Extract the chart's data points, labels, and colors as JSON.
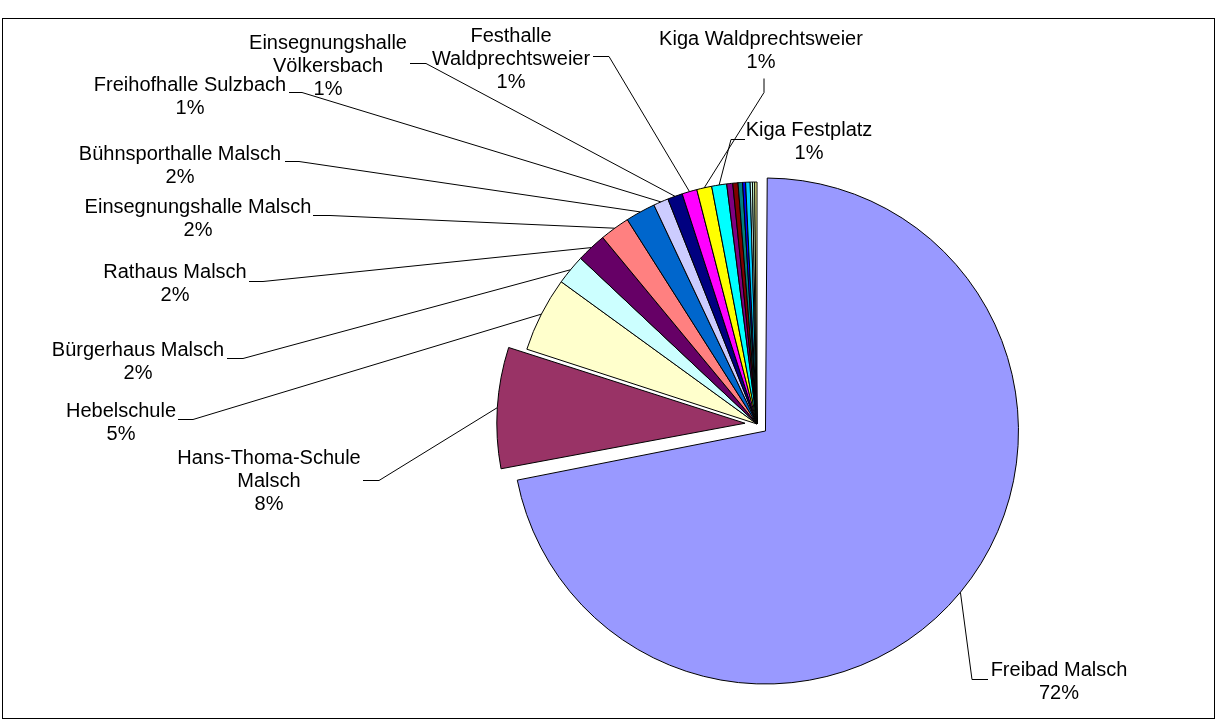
{
  "chart_data": {
    "type": "pie",
    "categories": [
      "Freibad Malsch",
      "Hans-Thoma-Schule Malsch",
      "Hebelschule",
      "Bürgerhaus Malsch",
      "Rathaus Malsch",
      "Einsegnungshalle Malsch",
      "Bühnsporthalle Malsch",
      "Freihofhalle Sulzbach",
      "Einsegnungshalle Völkersbach",
      "Festhalle Waldprechtsweier",
      "Kiga Waldprechtsweier",
      "Kiga Festplatz",
      null,
      null,
      null,
      null,
      null,
      null,
      null,
      null
    ],
    "values": [
      72,
      8,
      5,
      2,
      2,
      2,
      2,
      1,
      1,
      1,
      1,
      1,
      0.4,
      0.35,
      0.3,
      0.2,
      0.3,
      0.15,
      0.15,
      0.15
    ],
    "colors": [
      "#9999ff",
      "#993366",
      "#ffffcc",
      "#ccffff",
      "#660066",
      "#ff8080",
      "#0066cc",
      "#ccccff",
      "#000080",
      "#ff00ff",
      "#ffff00",
      "#00ffff",
      "#800080",
      "#800000",
      "#008080",
      "#0000ff",
      "#00ccff",
      "#ccffff",
      "#ccffcc",
      "#ffff99"
    ],
    "value_labels": [
      "72%",
      "8%",
      "5%",
      "2%",
      "2%",
      "2%",
      "2%",
      "1%",
      "1%",
      "1%",
      "1%",
      "1%",
      null,
      null,
      null,
      null,
      null,
      null,
      null,
      null
    ]
  }
}
